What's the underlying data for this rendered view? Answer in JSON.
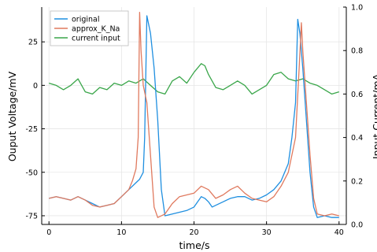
{
  "chart_data": {
    "type": "line",
    "xlabel": "time/s",
    "ylabel": "Ouput Voltage/mV",
    "ylabel_right": "Input Current/mA",
    "xlim": [
      -1,
      41
    ],
    "ylim": [
      -80,
      45
    ],
    "ylim_right": [
      0.0,
      1.0
    ],
    "x_ticks": [
      0,
      10,
      20,
      30,
      40
    ],
    "x_tick_labels": [
      "0",
      "10",
      "20",
      "30",
      "40"
    ],
    "y_ticks": [
      25,
      0,
      -25,
      -50,
      -75
    ],
    "y_tick_labels": [
      "25",
      "0",
      "-25",
      "-50",
      "-75"
    ],
    "y_ticks_right": [
      0.0,
      0.2,
      0.4,
      0.6,
      0.8,
      1.0
    ],
    "y_tick_labels_right": [
      "0.0",
      "0.2",
      "0.4",
      "0.6",
      "0.8",
      "1.0"
    ],
    "grid": true,
    "legend_position": "top-left",
    "series": [
      {
        "name": "original",
        "color": "#1f8fe0",
        "axis": "left",
        "x": [
          0,
          1,
          2,
          3,
          4,
          5,
          6,
          7,
          8,
          9,
          10,
          11,
          12,
          12.5,
          13,
          13.2,
          13.5,
          14,
          14.5,
          15,
          15.5,
          16,
          17,
          18,
          19,
          20,
          20.5,
          21,
          21.5,
          22,
          22.5,
          23,
          24,
          25,
          26,
          27,
          28,
          29,
          30,
          31,
          32,
          33,
          33.5,
          34,
          34.3,
          34.6,
          35,
          35.5,
          36,
          36.5,
          37,
          38,
          39,
          40
        ],
        "y": [
          -65,
          -64,
          -65,
          -66,
          -64,
          -66,
          -68,
          -70,
          -69,
          -68,
          -64,
          -60,
          -56,
          -54,
          -50,
          -30,
          40,
          30,
          10,
          -20,
          -60,
          -75,
          -74,
          -73,
          -72,
          -70,
          -67,
          -64,
          -65,
          -67,
          -70,
          -69,
          -67,
          -65,
          -64,
          -64,
          -66,
          -65,
          -63,
          -60,
          -55,
          -45,
          -30,
          -10,
          38,
          30,
          10,
          -20,
          -50,
          -70,
          -76,
          -75,
          -76,
          -76
        ]
      },
      {
        "name": "approx_K_Na",
        "color": "#e07a5f",
        "axis": "left",
        "x": [
          0,
          1,
          2,
          3,
          4,
          5,
          6,
          7,
          8,
          9,
          10,
          11,
          11.5,
          12,
          12.3,
          12.5,
          12.7,
          13,
          13.5,
          14,
          14.5,
          15,
          16,
          17,
          18,
          19,
          20,
          21,
          22,
          23,
          24,
          25,
          26,
          27,
          28,
          29,
          30,
          31,
          32,
          33,
          33.5,
          34,
          34.5,
          34.8,
          35,
          35.5,
          36,
          36.5,
          37,
          38,
          39,
          40
        ],
        "y": [
          -65,
          -64,
          -65,
          -66,
          -64,
          -66,
          -69,
          -70,
          -69,
          -68,
          -64,
          -60,
          -55,
          -48,
          -30,
          42,
          20,
          0,
          -10,
          -40,
          -70,
          -76,
          -74,
          -68,
          -64,
          -63,
          -62,
          -58,
          -60,
          -65,
          -63,
          -60,
          -58,
          -62,
          -65,
          -66,
          -67,
          -64,
          -58,
          -50,
          -40,
          -30,
          10,
          36,
          20,
          -10,
          -40,
          -65,
          -74,
          -75,
          -74,
          -75
        ]
      },
      {
        "name": "current input",
        "color": "#3aa64a",
        "axis": "right",
        "x": [
          0,
          1,
          2,
          3,
          4,
          5,
          6,
          7,
          8,
          9,
          10,
          11,
          12,
          13,
          14,
          15,
          16,
          17,
          18,
          19,
          20,
          21,
          21.5,
          22,
          23,
          24,
          25,
          26,
          27,
          28,
          29,
          30,
          31,
          32,
          33,
          34,
          35,
          36,
          37,
          38,
          39,
          40
        ],
        "y": [
          0.65,
          0.64,
          0.62,
          0.64,
          0.67,
          0.61,
          0.6,
          0.63,
          0.62,
          0.65,
          0.64,
          0.66,
          0.65,
          0.67,
          0.64,
          0.61,
          0.6,
          0.66,
          0.68,
          0.65,
          0.7,
          0.74,
          0.73,
          0.69,
          0.63,
          0.62,
          0.64,
          0.66,
          0.64,
          0.6,
          0.62,
          0.64,
          0.69,
          0.7,
          0.67,
          0.66,
          0.67,
          0.65,
          0.64,
          0.62,
          0.6,
          0.61
        ]
      }
    ]
  }
}
